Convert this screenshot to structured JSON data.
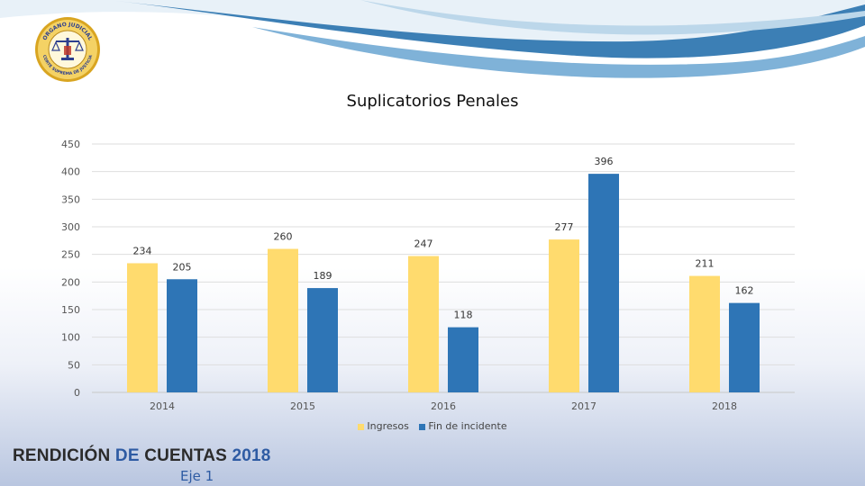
{
  "chart_data": {
    "type": "bar",
    "title": "Suplicatorios Penales",
    "categories": [
      "2014",
      "2015",
      "2016",
      "2017",
      "2018"
    ],
    "series": [
      {
        "name": "Ingresos",
        "values": [
          234,
          260,
          247,
          277,
          211
        ],
        "color": "#FFDB6E"
      },
      {
        "name": "Fin de incidente",
        "values": [
          205,
          189,
          118,
          396,
          162
        ],
        "color": "#2E75B6"
      }
    ],
    "y_ticks": [
      0,
      50,
      100,
      150,
      200,
      250,
      300,
      350,
      400,
      450
    ],
    "ylim": [
      0,
      450
    ],
    "grid": true,
    "legend_position": "bottom"
  },
  "footer": {
    "title_part1": "RENDICIÓN ",
    "title_part2": "DE ",
    "title_part3": "CUENTAS ",
    "title_part4": "2018",
    "subtitle": "Eje 1"
  },
  "seal": {
    "top_text": "ORGANO JUDICIAL",
    "bottom_text": "CORTE SUPREMA DE JUSTICIA"
  },
  "colors": {
    "seal_gold": "#d9a521",
    "seal_blue": "#2d3f8f",
    "swoosh_blue": "#3c7fb5",
    "accent": "#2e5ba3"
  }
}
